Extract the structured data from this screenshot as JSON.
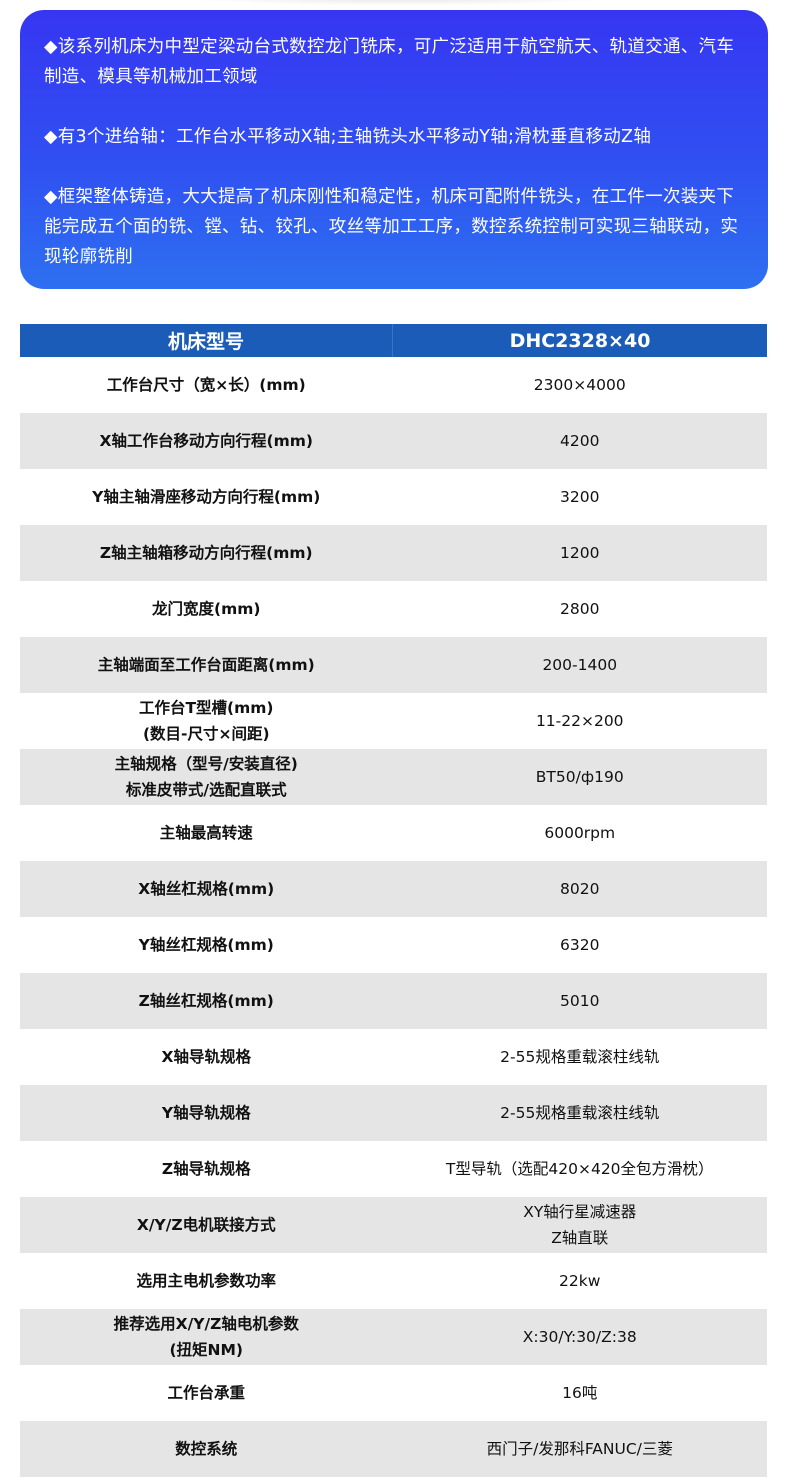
{
  "intro": {
    "paragraphs": [
      "◆该系列机床为中型定梁动台式数控龙门铣床，可广泛适用于航空航天、轨道交通、汽车制造、模具等机械加工领域",
      "◆有3个进给轴：工作台水平移动X轴;主轴铣头水平移动Y轴;滑枕垂直移动Z轴",
      "◆框架整体铸造，大大提高了机床刚性和稳定性，机床可配附件铣头，在工件一次装夹下能完成五个面的铣、镗、钻、铰孔、攻丝等加工工序，数控系统控制可实现三轴联动，实现轮廓铣削"
    ]
  },
  "table": {
    "header": {
      "key": "机床型号",
      "value": "DHC2328×40"
    },
    "rows": [
      {
        "key": [
          "工作台尺寸（宽×长）(mm)"
        ],
        "value": [
          "2300×4000"
        ]
      },
      {
        "key": [
          "X轴工作台移动方向行程(mm)"
        ],
        "value": [
          "4200"
        ]
      },
      {
        "key": [
          "Y轴主轴滑座移动方向行程(mm)"
        ],
        "value": [
          "3200"
        ]
      },
      {
        "key": [
          "Z轴主轴箱移动方向行程(mm)"
        ],
        "value": [
          "1200"
        ]
      },
      {
        "key": [
          "龙门宽度(mm)"
        ],
        "value": [
          "2800"
        ]
      },
      {
        "key": [
          "主轴端面至工作台面距离(mm)"
        ],
        "value": [
          "200-1400"
        ]
      },
      {
        "key": [
          "工作台T型槽(mm)",
          "(数目-尺寸×间距)"
        ],
        "value": [
          "11-22×200"
        ]
      },
      {
        "key": [
          "主轴规格（型号/安装直径)",
          "标准皮带式/选配直联式"
        ],
        "value": [
          "BT50/ф190"
        ]
      },
      {
        "key": [
          "主轴最高转速"
        ],
        "value": [
          "6000rpm"
        ]
      },
      {
        "key": [
          "X轴丝杠规格(mm)"
        ],
        "value": [
          "8020"
        ]
      },
      {
        "key": [
          "Y轴丝杠规格(mm)"
        ],
        "value": [
          "6320"
        ]
      },
      {
        "key": [
          "Z轴丝杠规格(mm)"
        ],
        "value": [
          "5010"
        ]
      },
      {
        "key": [
          "X轴导轨规格"
        ],
        "value": [
          "2-55规格重载滚柱线轨"
        ]
      },
      {
        "key": [
          "Y轴导轨规格"
        ],
        "value": [
          "2-55规格重载滚柱线轨"
        ]
      },
      {
        "key": [
          "Z轴导轨规格"
        ],
        "value": [
          "T型导轨（选配420×420全包方滑枕）"
        ]
      },
      {
        "key": [
          "X/Y/Z电机联接方式"
        ],
        "value": [
          "XY轴行星减速器",
          "Z轴直联"
        ]
      },
      {
        "key": [
          "选用主电机参数功率"
        ],
        "value": [
          "22kw"
        ]
      },
      {
        "key": [
          "推荐选用X/Y/Z轴电机参数",
          "(扭矩NM)"
        ],
        "value": [
          "X:30/Y:30/Z:38"
        ]
      },
      {
        "key": [
          "工作台承重"
        ],
        "value": [
          "16吨"
        ]
      },
      {
        "key": [
          "数控系统"
        ],
        "value": [
          "西门子/发那科FANUC/三菱"
        ]
      }
    ]
  },
  "colors": {
    "intro_top": "#3636f2",
    "intro_bottom": "#2d70f0",
    "header": "#1c5cb9",
    "row_alt": "#e6e5e6"
  }
}
